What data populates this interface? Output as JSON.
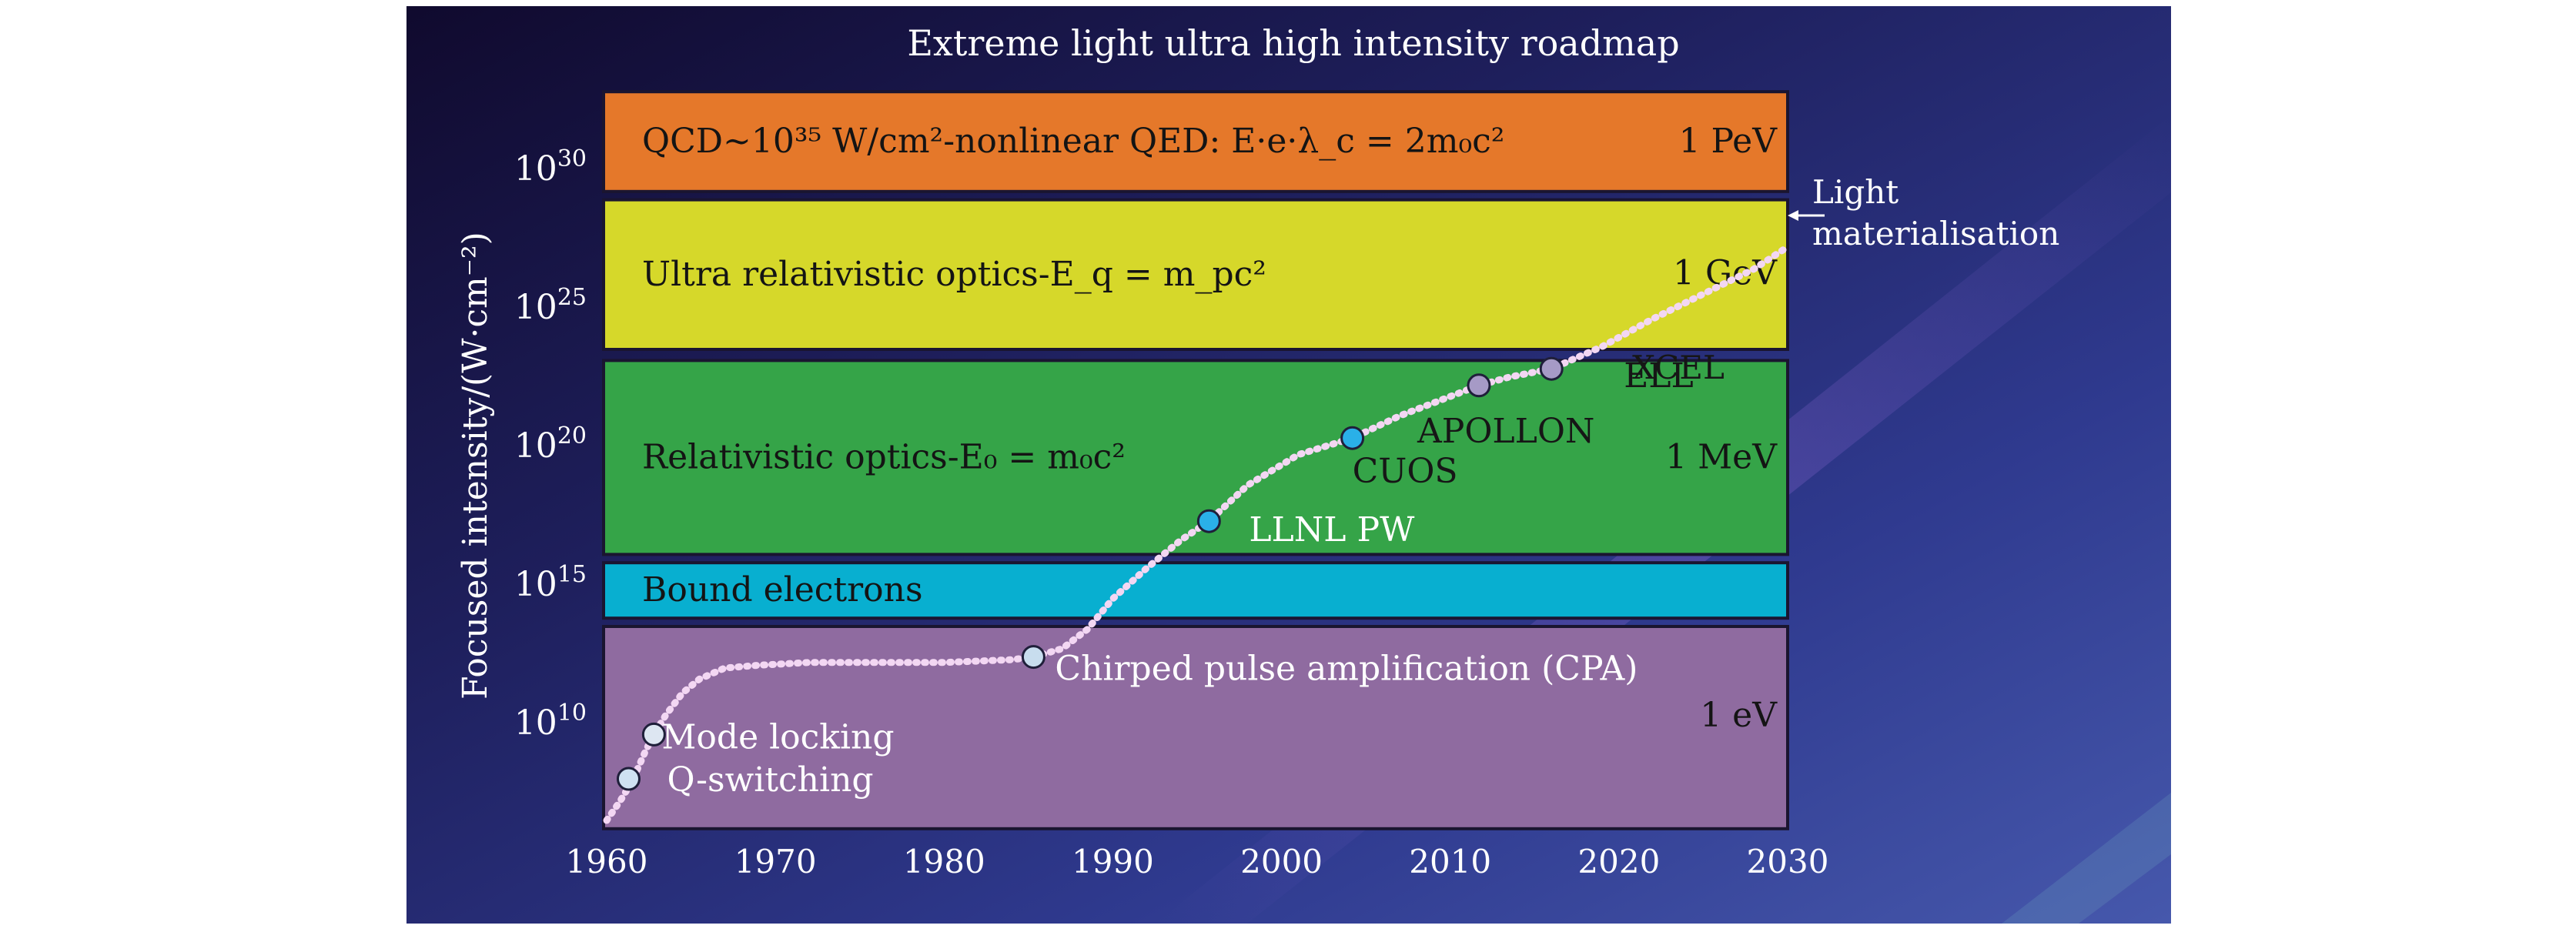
{
  "chart_data": {
    "type": "line",
    "title": "Extreme light ultra high intensity roadmap",
    "xlabel": "",
    "ylabel": "Focused intensity/(W·cm⁻²)",
    "xlim": [
      1960,
      2030
    ],
    "ylim": [
      6,
      33
    ],
    "y_scale": "log10",
    "x_ticks": [
      1960,
      1970,
      1980,
      1990,
      2000,
      2010,
      2020,
      2030
    ],
    "x_tick_labels": [
      "1960",
      "1970",
      "1980",
      "1990",
      "2000",
      "2010",
      "2020",
      "2030"
    ],
    "y_ticks": [
      {
        "value": 10,
        "base": "10",
        "exp": "10"
      },
      {
        "value": 15,
        "base": "10",
        "exp": "15"
      },
      {
        "value": 20,
        "base": "10",
        "exp": "20"
      },
      {
        "value": 25,
        "base": "10",
        "exp": "25"
      },
      {
        "value": 30,
        "base": "10",
        "exp": "30"
      }
    ],
    "bands": [
      {
        "label": "Bound electrons",
        "energy": "",
        "y0": 13.8,
        "y1": 15.8,
        "color": "#08afd0"
      },
      {
        "label": "Relativistic optics-E₀ = m₀c²",
        "energy": "1 MeV",
        "y0": 16.1,
        "y1": 23.1,
        "color": "#35a448"
      },
      {
        "label": "Ultra relativistic optics-E_q = m_pc²",
        "energy": "1 GeV",
        "y0": 23.5,
        "y1": 28.9,
        "color": "#d6d82a"
      },
      {
        "label": "QCD~10³⁵ W/cm²-nonlinear QED: E·e·λ_c = 2m₀c²",
        "energy": "1 PeV",
        "y0": 29.2,
        "y1": 32.8,
        "color": "#e5782a"
      },
      {
        "label": "",
        "energy": "1 eV",
        "y0": 6.2,
        "y1": 13.5,
        "color": "#8f6ba0"
      }
    ],
    "series": [
      {
        "x": [
          1960,
          1960.8,
          1961.5,
          1962.3,
          1962.8,
          1963.5,
          1964.5,
          1965.5,
          1967,
          1969,
          1972,
          1976,
          1980,
          1984,
          1985.3,
          1987,
          1988.5,
          1990,
          1992,
          1994,
          1995.7,
          1998,
          2001,
          2004.2,
          2007,
          2010,
          2011.7,
          2013.5,
          2016,
          2019,
          2022,
          2025,
          2028,
          2030
        ],
        "y": [
          6.5,
          7.2,
          7.9,
          9.0,
          9.6,
          10.3,
          11.1,
          11.6,
          12.0,
          12.1,
          12.2,
          12.2,
          12.2,
          12.3,
          12.4,
          12.7,
          13.4,
          14.5,
          15.6,
          16.6,
          17.3,
          18.6,
          19.7,
          20.3,
          21.1,
          21.8,
          22.2,
          22.5,
          22.8,
          23.6,
          24.6,
          25.5,
          26.4,
          27.2
        ]
      }
    ],
    "milestones": [
      {
        "year": 1961.3,
        "value": 8.0,
        "color": "#cfe1f2",
        "label": "Q-switching"
      },
      {
        "year": 1962.8,
        "value": 9.6,
        "color": "#dde6f2",
        "label": "Mode locking"
      },
      {
        "year": 1985.3,
        "value": 12.4,
        "color": "#c8ddee",
        "label": "Chirped pulse amplification (CPA)"
      },
      {
        "year": 1995.7,
        "value": 17.3,
        "color": "#2ab0e8",
        "label": "LLNL PW"
      },
      {
        "year": 2004.2,
        "value": 20.3,
        "color": "#2ab0e8",
        "label": "CUOS"
      },
      {
        "year": 2011.7,
        "value": 22.2,
        "color": "#a69ac6",
        "label": "APOLLON"
      },
      {
        "year": 2016,
        "value": 22.8,
        "color": "#a69ac6",
        "label": "ELL"
      }
    ],
    "annotations": [
      {
        "text": "XCEL"
      },
      {
        "text": "Light"
      },
      {
        "text": "materialisation"
      }
    ]
  }
}
